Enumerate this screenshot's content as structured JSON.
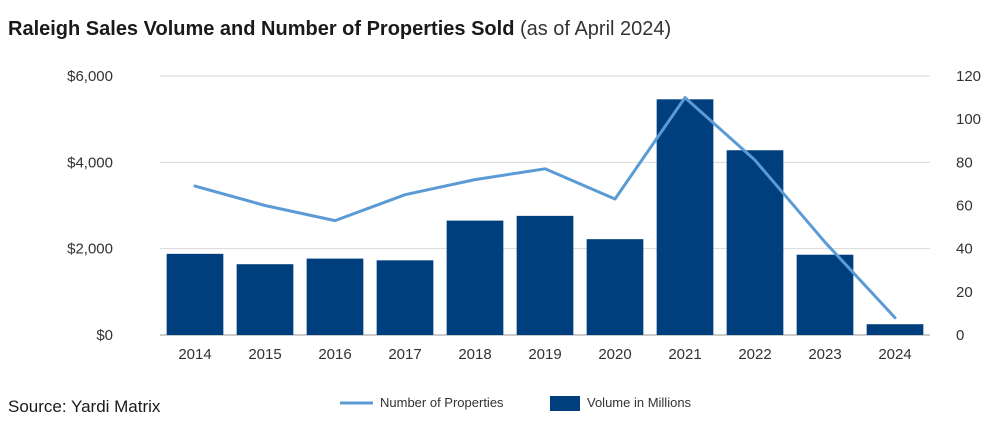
{
  "title": "Raleigh Sales Volume and Number of Properties Sold",
  "subtitle": "(as of April 2024)",
  "source": "Source: Yardi Matrix",
  "chart_data": {
    "type": "bar",
    "categories": [
      "2014",
      "2015",
      "2016",
      "2017",
      "2018",
      "2019",
      "2020",
      "2021",
      "2022",
      "2023",
      "2024"
    ],
    "series": [
      {
        "name": "Volume in Millions",
        "type": "bar",
        "axis": "left",
        "color": "#003f7d",
        "values": [
          1880,
          1640,
          1770,
          1730,
          2650,
          2760,
          2220,
          5460,
          4280,
          1860,
          250
        ]
      },
      {
        "name": "Number of Properties",
        "type": "line",
        "axis": "right",
        "color": "#5b9bd5",
        "values": [
          69,
          60,
          53,
          65,
          72,
          77,
          63,
          110,
          81,
          43,
          8
        ]
      }
    ],
    "y_left": {
      "ylim": [
        0,
        6000
      ],
      "ticks": [
        "$0",
        "$2,000",
        "$4,000",
        "$6,000"
      ],
      "tick_values": [
        0,
        2000,
        4000,
        6000
      ]
    },
    "y_right": {
      "ylim": [
        0,
        120
      ],
      "ticks": [
        "0",
        "20",
        "40",
        "60",
        "80",
        "100",
        "120"
      ],
      "tick_values": [
        0,
        20,
        40,
        60,
        80,
        100,
        120
      ]
    },
    "grid": true,
    "legend_position": "bottom"
  }
}
